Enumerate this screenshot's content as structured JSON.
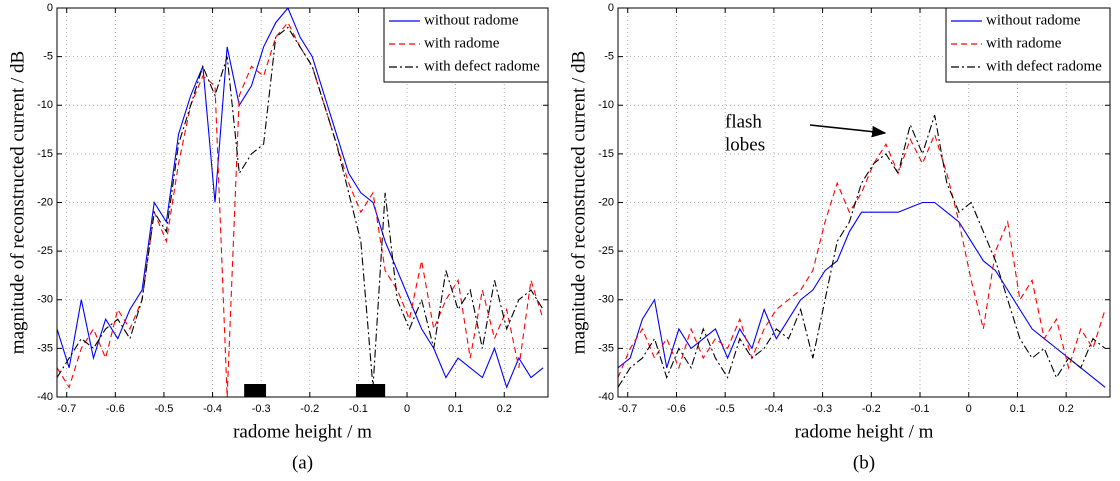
{
  "chart_data": [
    {
      "type": "line",
      "caption": "(a)",
      "xlabel": "radome height / m",
      "ylabel": "magnitude of reconstructed current / dB",
      "x": [
        -0.72,
        -0.695,
        -0.67,
        -0.645,
        -0.62,
        -0.595,
        -0.57,
        -0.545,
        -0.52,
        -0.495,
        -0.47,
        -0.445,
        -0.42,
        -0.395,
        -0.37,
        -0.345,
        -0.32,
        -0.295,
        -0.27,
        -0.245,
        -0.22,
        -0.195,
        -0.17,
        -0.145,
        -0.12,
        -0.095,
        -0.07,
        -0.045,
        -0.02,
        0.005,
        0.03,
        0.055,
        0.08,
        0.105,
        0.13,
        0.155,
        0.18,
        0.205,
        0.23,
        0.255,
        0.28
      ],
      "series": [
        {
          "name": "without radome",
          "color": "#0000ff",
          "style": "solid",
          "values": [
            -33,
            -37,
            -30,
            -36,
            -32,
            -34,
            -31,
            -29,
            -20,
            -22,
            -13,
            -9,
            -6,
            -20,
            -4,
            -10,
            -8,
            -4,
            -1.5,
            0,
            -3,
            -5,
            -9,
            -13,
            -17,
            -19,
            -20,
            -24,
            -27,
            -30,
            -33,
            -35,
            -38,
            -36,
            -37,
            -38,
            -35,
            -39,
            -36,
            -38,
            -37
          ]
        },
        {
          "name": "with radome",
          "color": "#ff0000",
          "style": "dashed",
          "values": [
            -37,
            -39,
            -35,
            -33,
            -36,
            -31,
            -33,
            -30,
            -21,
            -24,
            -16,
            -10,
            -7,
            -8,
            -40,
            -9,
            -6,
            -7,
            -3,
            -1.5,
            -4,
            -6,
            -10,
            -14,
            -18,
            -21,
            -19,
            -27,
            -29,
            -32,
            -26,
            -33,
            -30,
            -28,
            -36,
            -29,
            -34,
            -31,
            -37,
            -28,
            -32
          ]
        },
        {
          "name": "with defect radome",
          "color": "#000000",
          "style": "dashdot",
          "values": [
            -38,
            -36,
            -34,
            -35,
            -33,
            -32,
            -34,
            -30,
            -21,
            -23,
            -14,
            -10,
            -6,
            -9,
            -5,
            -17,
            -15,
            -14,
            -3,
            -2,
            -4,
            -6,
            -10,
            -14,
            -19,
            -24,
            -39,
            -19,
            -30,
            -33,
            -30,
            -35,
            -27,
            -31,
            -29,
            -35,
            -28,
            -33,
            -30,
            -29,
            -31
          ]
        }
      ],
      "defect_regions": [
        [
          -0.335,
          -0.29
        ],
        [
          -0.105,
          -0.045
        ]
      ],
      "xlim": [
        -0.72,
        0.29
      ],
      "ylim": [
        -40,
        0
      ],
      "xticks": [
        -0.7,
        -0.6,
        -0.5,
        -0.4,
        -0.3,
        -0.2,
        -0.1,
        0,
        0.1,
        0.2
      ],
      "yticks": [
        -40,
        -35,
        -30,
        -25,
        -20,
        -15,
        -10,
        -5,
        0
      ],
      "grid": true,
      "legend": "upper right"
    },
    {
      "type": "line",
      "caption": "(b)",
      "xlabel": "radome height / m",
      "ylabel": "magnitude of reconstructed current / dB",
      "annotation": [
        "flash",
        "lobes"
      ],
      "x": [
        -0.72,
        -0.695,
        -0.67,
        -0.645,
        -0.62,
        -0.595,
        -0.57,
        -0.545,
        -0.52,
        -0.495,
        -0.47,
        -0.445,
        -0.42,
        -0.395,
        -0.37,
        -0.345,
        -0.32,
        -0.295,
        -0.27,
        -0.245,
        -0.22,
        -0.195,
        -0.17,
        -0.145,
        -0.12,
        -0.095,
        -0.07,
        -0.045,
        -0.02,
        0.005,
        0.03,
        0.055,
        0.08,
        0.105,
        0.13,
        0.155,
        0.18,
        0.205,
        0.23,
        0.255,
        0.28
      ],
      "series": [
        {
          "name": "without radome",
          "color": "#0000ff",
          "style": "solid",
          "values": [
            -37,
            -36,
            -32,
            -30,
            -37,
            -33,
            -35,
            -34,
            -33,
            -36,
            -33,
            -35,
            -31,
            -34,
            -32,
            -30,
            -29,
            -27,
            -26,
            -23,
            -21,
            -21,
            -21,
            -21,
            -20.5,
            -20,
            -20,
            -21,
            -22,
            -24,
            -26,
            -27,
            -29,
            -31,
            -33,
            -34,
            -35,
            -36,
            -37,
            -38,
            -39
          ]
        },
        {
          "name": "with radome",
          "color": "#ff0000",
          "style": "dashed",
          "values": [
            -38,
            -35,
            -33,
            -36,
            -34,
            -37,
            -33,
            -36,
            -34,
            -35,
            -32,
            -36,
            -33,
            -31,
            -30,
            -29,
            -27,
            -22,
            -18,
            -21,
            -19,
            -16,
            -14,
            -17,
            -13.5,
            -16,
            -13,
            -17,
            -22,
            -28,
            -33,
            -25,
            -22,
            -30,
            -28,
            -34,
            -32,
            -37,
            -33,
            -35,
            -31
          ]
        },
        {
          "name": "with defect radome",
          "color": "#000000",
          "style": "dashdot",
          "values": [
            -39,
            -37,
            -36,
            -34,
            -38,
            -35,
            -37,
            -33,
            -36,
            -38,
            -34,
            -36,
            -35,
            -33,
            -34,
            -31,
            -36,
            -30,
            -24,
            -22,
            -18,
            -16,
            -15,
            -17,
            -12,
            -15,
            -11,
            -18,
            -21,
            -20,
            -23,
            -26,
            -30,
            -34,
            -36,
            -35,
            -38,
            -36,
            -37,
            -34,
            -35
          ]
        }
      ],
      "xlim": [
        -0.72,
        0.29
      ],
      "ylim": [
        -40,
        0
      ],
      "xticks": [
        -0.7,
        -0.6,
        -0.5,
        -0.4,
        -0.3,
        -0.2,
        -0.1,
        0,
        0.1,
        0.2
      ],
      "yticks": [
        -40,
        -35,
        -30,
        -25,
        -20,
        -15,
        -10,
        -5,
        0
      ],
      "grid": true,
      "legend": "upper right"
    }
  ]
}
